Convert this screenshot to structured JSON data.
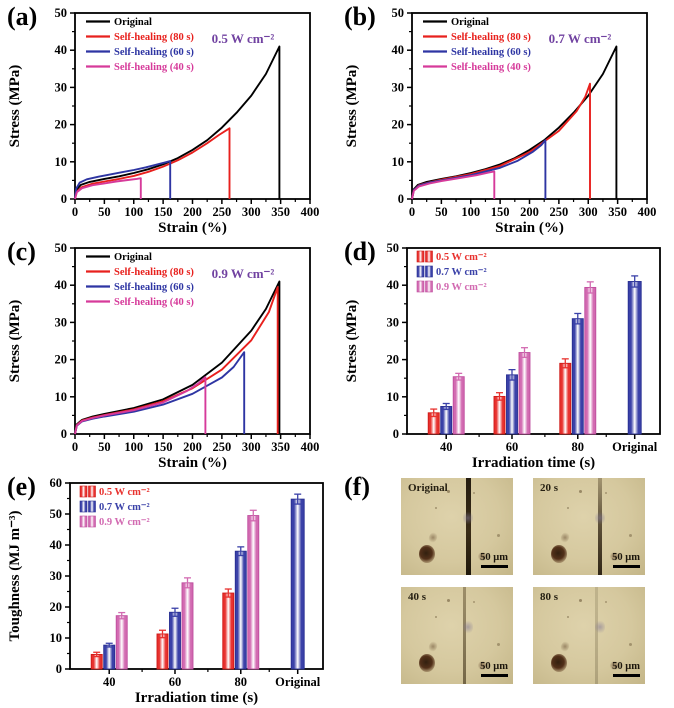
{
  "colors": {
    "black": "#000000",
    "red": "#e8201d",
    "blue": "#2e35a3",
    "magenta": "#d63a9a",
    "purple": "#7142a1"
  },
  "panels": {
    "a": "(a)",
    "b": "(b)",
    "c": "(c)",
    "d": "(d)",
    "e": "(e)",
    "f": "(f)"
  },
  "chart_data": [
    {
      "id": "a",
      "type": "line",
      "annotation": "0.5 W cm⁻²",
      "xlabel": "Strain (%)",
      "ylabel": "Stress (MPa)",
      "xlim": [
        0,
        400
      ],
      "ylim": [
        0,
        50
      ],
      "xticks": [
        0,
        50,
        100,
        150,
        200,
        250,
        300,
        350,
        400
      ],
      "yticks": [
        0,
        10,
        20,
        30,
        40,
        50
      ],
      "grid": false,
      "legend_position": "top-left",
      "series": [
        {
          "name": "Original",
          "color": "#000000",
          "points": [
            [
              0,
              0
            ],
            [
              3,
              2.6
            ],
            [
              10,
              3.8
            ],
            [
              25,
              4.6
            ],
            [
              50,
              5.4
            ],
            [
              75,
              6.1
            ],
            [
              100,
              7.0
            ],
            [
              125,
              8.0
            ],
            [
              150,
              9.3
            ],
            [
              175,
              11.0
            ],
            [
              200,
              13.2
            ],
            [
              225,
              15.8
            ],
            [
              250,
              19.2
            ],
            [
              275,
              23.2
            ],
            [
              300,
              27.8
            ],
            [
              325,
              33.6
            ],
            [
              348,
              41.0
            ],
            [
              348,
              0
            ]
          ]
        },
        {
          "name": "Self-healing (80 s)",
          "color": "#e8201d",
          "points": [
            [
              0,
              0
            ],
            [
              3,
              2.0
            ],
            [
              12,
              3.2
            ],
            [
              30,
              4.1
            ],
            [
              50,
              4.7
            ],
            [
              75,
              5.4
            ],
            [
              100,
              6.2
            ],
            [
              125,
              7.3
            ],
            [
              150,
              8.7
            ],
            [
              175,
              10.4
            ],
            [
              200,
              12.5
            ],
            [
              225,
              15.0
            ],
            [
              245,
              17.2
            ],
            [
              263,
              19.0
            ],
            [
              263,
              0
            ]
          ]
        },
        {
          "name": "Self-healing (60 s)",
          "color": "#2e35a3",
          "points": [
            [
              0,
              0
            ],
            [
              2,
              2.8
            ],
            [
              8,
              4.4
            ],
            [
              20,
              5.3
            ],
            [
              40,
              6.0
            ],
            [
              60,
              6.6
            ],
            [
              80,
              7.2
            ],
            [
              100,
              7.8
            ],
            [
              120,
              8.5
            ],
            [
              140,
              9.3
            ],
            [
              155,
              9.9
            ],
            [
              162,
              10.2
            ],
            [
              162,
              0
            ]
          ]
        },
        {
          "name": "Self-healing (40 s)",
          "color": "#d63a9a",
          "points": [
            [
              0,
              0
            ],
            [
              3,
              1.8
            ],
            [
              12,
              2.9
            ],
            [
              30,
              3.7
            ],
            [
              50,
              4.2
            ],
            [
              70,
              4.7
            ],
            [
              90,
              5.1
            ],
            [
              105,
              5.4
            ],
            [
              112,
              5.6
            ],
            [
              112,
              0
            ]
          ]
        }
      ]
    },
    {
      "id": "b",
      "type": "line",
      "annotation": "0.7 W cm⁻²",
      "xlabel": "Strain (%)",
      "ylabel": "Stress (MPa)",
      "xlim": [
        0,
        400
      ],
      "ylim": [
        0,
        50
      ],
      "xticks": [
        0,
        50,
        100,
        150,
        200,
        250,
        300,
        350,
        400
      ],
      "yticks": [
        0,
        10,
        20,
        30,
        40,
        50
      ],
      "grid": false,
      "legend_position": "top-left",
      "series": [
        {
          "name": "Original",
          "color": "#000000",
          "points": [
            [
              0,
              0
            ],
            [
              3,
              2.6
            ],
            [
              10,
              3.8
            ],
            [
              25,
              4.6
            ],
            [
              50,
              5.4
            ],
            [
              75,
              6.1
            ],
            [
              100,
              7.0
            ],
            [
              125,
              8.0
            ],
            [
              150,
              9.3
            ],
            [
              175,
              11.0
            ],
            [
              200,
              13.2
            ],
            [
              225,
              15.8
            ],
            [
              250,
              19.2
            ],
            [
              275,
              23.2
            ],
            [
              300,
              27.8
            ],
            [
              325,
              33.6
            ],
            [
              348,
              41.0
            ],
            [
              348,
              0
            ]
          ]
        },
        {
          "name": "Self-healing (80 s)",
          "color": "#e8201d",
          "points": [
            [
              0,
              0
            ],
            [
              3,
              2.4
            ],
            [
              12,
              3.7
            ],
            [
              30,
              4.5
            ],
            [
              50,
              5.2
            ],
            [
              100,
              6.7
            ],
            [
              150,
              8.9
            ],
            [
              200,
              12.6
            ],
            [
              250,
              18.3
            ],
            [
              280,
              23.6
            ],
            [
              295,
              27.5
            ],
            [
              303,
              31.0
            ],
            [
              303,
              0
            ]
          ]
        },
        {
          "name": "Self-healing (60 s)",
          "color": "#2e35a3",
          "points": [
            [
              0,
              0
            ],
            [
              3,
              2.4
            ],
            [
              12,
              3.6
            ],
            [
              30,
              4.4
            ],
            [
              50,
              5.0
            ],
            [
              100,
              6.4
            ],
            [
              150,
              8.4
            ],
            [
              180,
              10.3
            ],
            [
              205,
              12.6
            ],
            [
              220,
              14.5
            ],
            [
              227,
              15.8
            ],
            [
              227,
              0
            ]
          ]
        },
        {
          "name": "Self-healing (40 s)",
          "color": "#d63a9a",
          "points": [
            [
              0,
              0
            ],
            [
              3,
              2.2
            ],
            [
              12,
              3.4
            ],
            [
              30,
              4.2
            ],
            [
              50,
              4.8
            ],
            [
              80,
              5.6
            ],
            [
              110,
              6.4
            ],
            [
              130,
              7.1
            ],
            [
              140,
              7.4
            ],
            [
              140,
              0
            ]
          ]
        }
      ]
    },
    {
      "id": "c",
      "type": "line",
      "annotation": "0.9 W cm⁻²",
      "xlabel": "Strain (%)",
      "ylabel": "Stress (MPa)",
      "xlim": [
        0,
        400
      ],
      "ylim": [
        0,
        50
      ],
      "xticks": [
        0,
        50,
        100,
        150,
        200,
        250,
        300,
        350,
        400
      ],
      "yticks": [
        0,
        10,
        20,
        30,
        40,
        50
      ],
      "grid": false,
      "legend_position": "top-left",
      "series": [
        {
          "name": "Original",
          "color": "#000000",
          "points": [
            [
              0,
              0
            ],
            [
              3,
              2.6
            ],
            [
              12,
              3.8
            ],
            [
              30,
              4.7
            ],
            [
              50,
              5.4
            ],
            [
              100,
              7.0
            ],
            [
              150,
              9.3
            ],
            [
              200,
              13.2
            ],
            [
              250,
              19.2
            ],
            [
              300,
              27.8
            ],
            [
              325,
              33.6
            ],
            [
              348,
              41.0
            ],
            [
              348,
              0
            ]
          ]
        },
        {
          "name": "Self-healing (80 s)",
          "color": "#e8201d",
          "points": [
            [
              0,
              0
            ],
            [
              3,
              2.4
            ],
            [
              12,
              3.6
            ],
            [
              30,
              4.4
            ],
            [
              50,
              5.1
            ],
            [
              100,
              6.6
            ],
            [
              150,
              8.8
            ],
            [
              200,
              12.3
            ],
            [
              250,
              17.3
            ],
            [
              300,
              25.2
            ],
            [
              330,
              32.8
            ],
            [
              345,
              39.5
            ],
            [
              345,
              0
            ]
          ]
        },
        {
          "name": "Self-healing (60 s)",
          "color": "#2e35a3",
          "points": [
            [
              0,
              0
            ],
            [
              3,
              2.2
            ],
            [
              12,
              3.4
            ],
            [
              30,
              4.1
            ],
            [
              50,
              4.7
            ],
            [
              100,
              6.0
            ],
            [
              150,
              7.9
            ],
            [
              200,
              10.8
            ],
            [
              250,
              15.2
            ],
            [
              270,
              18.0
            ],
            [
              288,
              22.0
            ],
            [
              288,
              0
            ]
          ]
        },
        {
          "name": "Self-healing (40 s)",
          "color": "#d63a9a",
          "points": [
            [
              0,
              0
            ],
            [
              3,
              2.3
            ],
            [
              12,
              3.5
            ],
            [
              30,
              4.3
            ],
            [
              50,
              5.0
            ],
            [
              100,
              6.4
            ],
            [
              150,
              8.5
            ],
            [
              190,
              11.5
            ],
            [
              210,
              13.6
            ],
            [
              222,
              15.3
            ],
            [
              222,
              0
            ]
          ]
        }
      ]
    },
    {
      "id": "d",
      "type": "bar",
      "xlabel": "Irradiation time (s)",
      "ylabel": "Stress (MPa)",
      "categories": [
        "40",
        "60",
        "80",
        "Original"
      ],
      "ylim": [
        0,
        50
      ],
      "yticks": [
        0,
        10,
        20,
        30,
        40,
        50
      ],
      "grid": false,
      "legend_position": "top-left",
      "series": [
        {
          "name": "0.5 W cm⁻²",
          "color": "#e8312e",
          "edge": "#cf1a17",
          "values": [
            5.7,
            10.1,
            19.0,
            null
          ],
          "errors": [
            1.0,
            1.0,
            1.2,
            null
          ]
        },
        {
          "name": "0.7 W cm⁻²",
          "color": "#3a41a8",
          "edge": "#272e91",
          "values": [
            7.4,
            15.9,
            31.0,
            41.0
          ],
          "errors": [
            0.8,
            1.4,
            1.4,
            1.5
          ]
        },
        {
          "name": "0.9 W cm⁻²",
          "color": "#d26ab1",
          "edge": "#bf4d9e",
          "values": [
            15.4,
            21.9,
            39.4,
            null
          ],
          "errors": [
            0.9,
            1.3,
            1.5,
            null
          ]
        }
      ]
    },
    {
      "id": "e",
      "type": "bar",
      "xlabel": "Irradiation time (s)",
      "ylabel": "Toughness (MJ m⁻³)",
      "categories": [
        "40",
        "60",
        "80",
        "Original"
      ],
      "ylim": [
        0,
        60
      ],
      "yticks": [
        0,
        10,
        20,
        30,
        40,
        50,
        60
      ],
      "grid": false,
      "legend_position": "top-left",
      "series": [
        {
          "name": "0.5 W cm⁻²",
          "color": "#e8312e",
          "edge": "#cf1a17",
          "values": [
            4.7,
            11.3,
            24.5,
            null
          ],
          "errors": [
            0.7,
            1.2,
            1.3,
            null
          ]
        },
        {
          "name": "0.7 W cm⁻²",
          "color": "#3a41a8",
          "edge": "#272e91",
          "values": [
            7.7,
            18.3,
            38.0,
            54.8
          ],
          "errors": [
            0.6,
            1.3,
            1.4,
            1.6
          ]
        },
        {
          "name": "0.9 W cm⁻²",
          "color": "#d26ab1",
          "edge": "#bf4d9e",
          "values": [
            17.2,
            27.8,
            49.5,
            null
          ],
          "errors": [
            1.0,
            1.6,
            1.7,
            null
          ]
        }
      ]
    }
  ],
  "micrographs": {
    "scale_label": "50 μm",
    "items": [
      {
        "label": "Original"
      },
      {
        "label": "20 s"
      },
      {
        "label": "40 s"
      },
      {
        "label": "80 s"
      }
    ]
  }
}
